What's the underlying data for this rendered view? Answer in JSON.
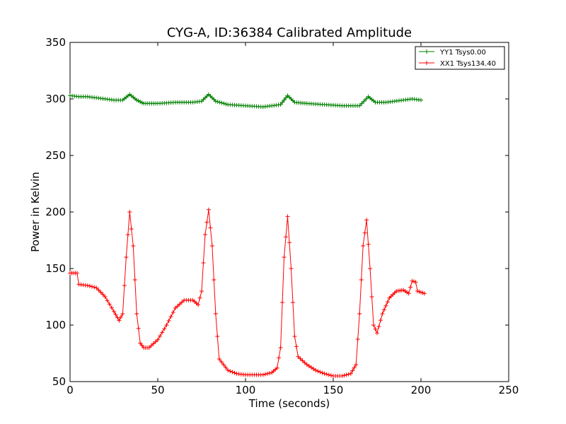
{
  "chart_data": {
    "type": "line",
    "title": "CYG-A, ID:36384 Calibrated Amplitude",
    "xlabel": "Time (seconds)",
    "ylabel": "Power in Kelvin",
    "xlim": [
      0,
      250
    ],
    "ylim": [
      50,
      350
    ],
    "x_ticks": [
      0,
      50,
      100,
      150,
      200,
      250
    ],
    "y_ticks": [
      50,
      100,
      150,
      200,
      250,
      300,
      350
    ],
    "x_tick_labels": [
      "0",
      "50",
      "100",
      "150",
      "200",
      "250"
    ],
    "y_tick_labels": [
      "50",
      "100",
      "150",
      "200",
      "250",
      "300",
      "350"
    ],
    "grid": false,
    "legend_position": "top-right",
    "series": [
      {
        "name": "YY1 Tsys0.00",
        "color": "#008000",
        "marker": "+",
        "points": [
          [
            0,
            303
          ],
          [
            5,
            302
          ],
          [
            10,
            302
          ],
          [
            15,
            301
          ],
          [
            20,
            300
          ],
          [
            25,
            299
          ],
          [
            30,
            299
          ],
          [
            34,
            304
          ],
          [
            38,
            299
          ],
          [
            42,
            296
          ],
          [
            50,
            296
          ],
          [
            60,
            297
          ],
          [
            70,
            297
          ],
          [
            75,
            298
          ],
          [
            79,
            304
          ],
          [
            83,
            298
          ],
          [
            90,
            295
          ],
          [
            100,
            294
          ],
          [
            110,
            293
          ],
          [
            120,
            295
          ],
          [
            124,
            303
          ],
          [
            128,
            297
          ],
          [
            135,
            296
          ],
          [
            145,
            295
          ],
          [
            155,
            294
          ],
          [
            165,
            294
          ],
          [
            170,
            302
          ],
          [
            174,
            297
          ],
          [
            180,
            297
          ],
          [
            190,
            299
          ],
          [
            195,
            300
          ],
          [
            200,
            299
          ]
        ]
      },
      {
        "name": "XX1 Tsys134.40",
        "color": "#ff0000",
        "marker": "+",
        "points": [
          [
            0,
            146
          ],
          [
            4,
            146
          ],
          [
            5,
            136
          ],
          [
            10,
            135
          ],
          [
            15,
            133
          ],
          [
            20,
            125
          ],
          [
            25,
            112
          ],
          [
            28,
            104
          ],
          [
            30,
            110
          ],
          [
            32,
            160
          ],
          [
            34,
            200
          ],
          [
            36,
            170
          ],
          [
            38,
            110
          ],
          [
            40,
            84
          ],
          [
            42,
            80
          ],
          [
            45,
            80
          ],
          [
            50,
            87
          ],
          [
            55,
            100
          ],
          [
            60,
            115
          ],
          [
            65,
            122
          ],
          [
            70,
            122
          ],
          [
            73,
            118
          ],
          [
            75,
            130
          ],
          [
            77,
            180
          ],
          [
            79,
            202
          ],
          [
            81,
            170
          ],
          [
            83,
            110
          ],
          [
            85,
            70
          ],
          [
            90,
            60
          ],
          [
            95,
            57
          ],
          [
            100,
            56
          ],
          [
            105,
            56
          ],
          [
            110,
            56
          ],
          [
            115,
            58
          ],
          [
            118,
            62
          ],
          [
            120,
            80
          ],
          [
            122,
            160
          ],
          [
            124,
            196
          ],
          [
            126,
            150
          ],
          [
            128,
            90
          ],
          [
            130,
            72
          ],
          [
            135,
            65
          ],
          [
            140,
            60
          ],
          [
            145,
            57
          ],
          [
            150,
            55
          ],
          [
            155,
            55
          ],
          [
            160,
            57
          ],
          [
            163,
            65
          ],
          [
            165,
            110
          ],
          [
            167,
            170
          ],
          [
            169,
            193
          ],
          [
            171,
            150
          ],
          [
            173,
            100
          ],
          [
            175,
            93
          ],
          [
            178,
            110
          ],
          [
            182,
            124
          ],
          [
            186,
            130
          ],
          [
            190,
            131
          ],
          [
            193,
            128
          ],
          [
            195,
            139
          ],
          [
            197,
            138
          ],
          [
            198,
            130
          ],
          [
            200,
            129
          ],
          [
            202,
            128
          ]
        ]
      }
    ]
  }
}
